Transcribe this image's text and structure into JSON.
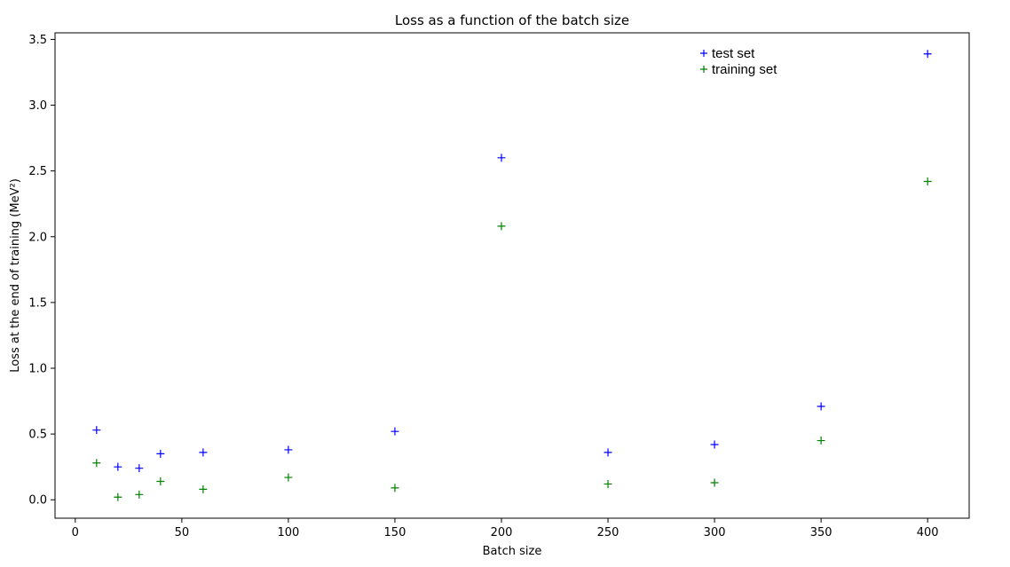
{
  "chart_data": {
    "type": "scatter",
    "title": "Loss as a function of the batch size",
    "xlabel": "Batch size",
    "ylabel": "Loss at the end of training  (MeV²)",
    "xlim": [
      -9.5,
      419.5
    ],
    "ylim": [
      -0.14,
      3.55
    ],
    "x_ticks": [
      0,
      50,
      100,
      150,
      200,
      250,
      300,
      350,
      400
    ],
    "x_tick_labels": [
      "0",
      "50",
      "100",
      "150",
      "200",
      "250",
      "300",
      "350",
      "400"
    ],
    "y_ticks": [
      0.0,
      0.5,
      1.0,
      1.5,
      2.0,
      2.5,
      3.0,
      3.5
    ],
    "y_tick_labels": [
      "0.0",
      "0.5",
      "1.0",
      "1.5",
      "2.0",
      "2.5",
      "3.0",
      "3.5"
    ],
    "grid": false,
    "legend_position": "top-right",
    "marker": "+",
    "series": [
      {
        "name": "test set",
        "color": "#0000ff",
        "x": [
          10,
          20,
          30,
          40,
          60,
          100,
          150,
          200,
          250,
          300,
          350,
          400
        ],
        "y": [
          0.53,
          0.25,
          0.24,
          0.35,
          0.36,
          0.38,
          0.52,
          2.6,
          0.36,
          0.42,
          0.71,
          3.39
        ]
      },
      {
        "name": "training set",
        "color": "#008000",
        "x": [
          10,
          20,
          30,
          40,
          60,
          100,
          150,
          200,
          250,
          300,
          350,
          400
        ],
        "y": [
          0.28,
          0.02,
          0.04,
          0.14,
          0.08,
          0.17,
          0.09,
          2.08,
          0.12,
          0.13,
          0.45,
          2.42
        ]
      }
    ]
  }
}
